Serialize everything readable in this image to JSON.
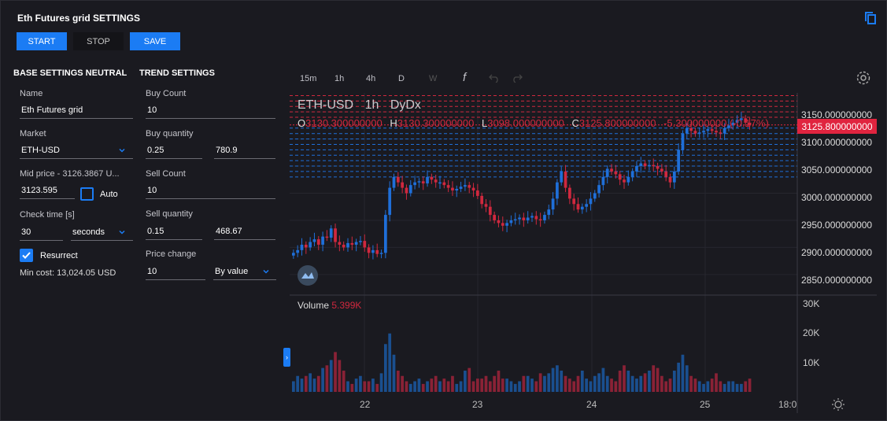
{
  "header": {
    "title": "Eth Futures grid SETTINGS"
  },
  "toolbar": {
    "start": "START",
    "stop": "STOP",
    "save": "SAVE"
  },
  "base": {
    "heading": "BASE SETTINGS NEUTRAL",
    "name_label": "Name",
    "name_value": "Eth Futures grid",
    "market_label": "Market",
    "market_value": "ETH-USD",
    "mid_label": "Mid price - 3126.3867 U...",
    "mid_value": "3123.595",
    "auto_label": "Auto",
    "check_label": "Check time [s]",
    "check_value": "30",
    "check_unit": "seconds",
    "resurrect_label": "Resurrect",
    "min_cost": "Min cost: 13,024.05 USD"
  },
  "trend": {
    "heading": "TREND SETTINGS",
    "buy_count_label": "Buy Count",
    "buy_count_value": "10",
    "buy_qty_label": "Buy quantity",
    "buy_qty_value": "0.25",
    "buy_qty_value2": "780.9",
    "sell_count_label": "Sell Count",
    "sell_count_value": "10",
    "sell_qty_label": "Sell quantity",
    "sell_qty_value": "0.15",
    "sell_qty_value2": "468.67",
    "price_change_label": "Price change",
    "price_change_value": "10",
    "price_change_mode": "By value"
  },
  "chart_toolbar": {
    "tf": [
      "15m",
      "1h",
      "4h",
      "D",
      "W"
    ],
    "fx": "f"
  },
  "chart_data": {
    "type": "candlestick",
    "symbol": "ETH-USD",
    "interval": "1h",
    "exchange": "DyDx",
    "ohlc": {
      "o_label": "O",
      "o": "3130.300000000",
      "h_label": "H",
      "h": "3130.300000000",
      "l_label": "L",
      "l": "3098.000000000",
      "c_label": "C",
      "c": "3125.800000000",
      "chg": "-5.300000000",
      "chg_pct": "(-0.17%)"
    },
    "current_price": "3125.800000000",
    "y_ticks": [
      "3150.000000000",
      "3100.000000000",
      "3050.000000000",
      "3000.000000000",
      "2950.000000000",
      "2900.000000000",
      "2850.000000000"
    ],
    "x_ticks": [
      "22",
      "23",
      "24",
      "25",
      "18:0"
    ],
    "volume_label": "Volume",
    "volume_value": "5.399K",
    "volume_ticks": [
      "30K",
      "20K",
      "10K"
    ],
    "close": [
      2890,
      2895,
      2905,
      2900,
      2910,
      2915,
      2905,
      2920,
      2918,
      2935,
      2910,
      2905,
      2900,
      2908,
      2905,
      2910,
      2912,
      2900,
      2890,
      2895,
      2888,
      2890,
      2960,
      3010,
      3030,
      3020,
      3010,
      3000,
      3015,
      3020,
      3022,
      3018,
      3030,
      3025,
      3020,
      3020,
      3015,
      3010,
      3005,
      3008,
      3012,
      3015,
      3010,
      3005,
      2995,
      2980,
      2975,
      2960,
      2950,
      2945,
      2940,
      2945,
      2950,
      2952,
      2955,
      2950,
      2955,
      2958,
      2952,
      2950,
      2960,
      2970,
      2990,
      3020,
      3040,
      3010,
      2990,
      2980,
      2970,
      2975,
      2980,
      2990,
      3000,
      3015,
      3030,
      3045,
      3040,
      3035,
      3025,
      3020,
      3030,
      3040,
      3050,
      3055,
      3050,
      3052,
      3050,
      3045,
      3040,
      3030,
      3020,
      3040,
      3080,
      3110,
      3120,
      3115,
      3110,
      3112,
      3115,
      3118,
      3115,
      3112,
      3110,
      3120,
      3125,
      3130,
      3135,
      3138,
      3130,
      3125
    ],
    "volume": [
      4,
      6,
      5,
      6,
      7,
      5,
      6,
      9,
      10,
      12,
      15,
      12,
      8,
      4,
      3,
      5,
      6,
      4,
      4,
      5,
      3,
      7,
      18,
      22,
      14,
      8,
      6,
      4,
      3,
      4,
      5,
      3,
      4,
      5,
      6,
      4,
      5,
      4,
      6,
      3,
      4,
      8,
      9,
      4,
      5,
      5,
      6,
      4,
      6,
      8,
      5,
      5,
      4,
      3,
      4,
      6,
      6,
      5,
      4,
      7,
      6,
      7,
      9,
      10,
      8,
      6,
      5,
      4,
      6,
      8,
      5,
      4,
      6,
      7,
      9,
      6,
      5,
      4,
      8,
      10,
      8,
      6,
      5,
      6,
      7,
      8,
      10,
      9,
      6,
      4,
      5,
      8,
      11,
      14,
      10,
      6,
      5,
      4,
      3,
      4,
      5,
      7,
      4,
      3,
      4,
      4,
      3,
      3,
      4,
      5
    ],
    "grid_levels_sell": [
      3180,
      3170,
      3160,
      3150,
      3140
    ],
    "grid_levels_buy": [
      3120,
      3110,
      3100,
      3090,
      3080,
      3070,
      3060,
      3050,
      3040,
      3030
    ]
  },
  "colors": {
    "accent": "#1b7cf4",
    "up": "#1f6fd9",
    "down": "#d0283e",
    "bg": "#1a1a20"
  }
}
